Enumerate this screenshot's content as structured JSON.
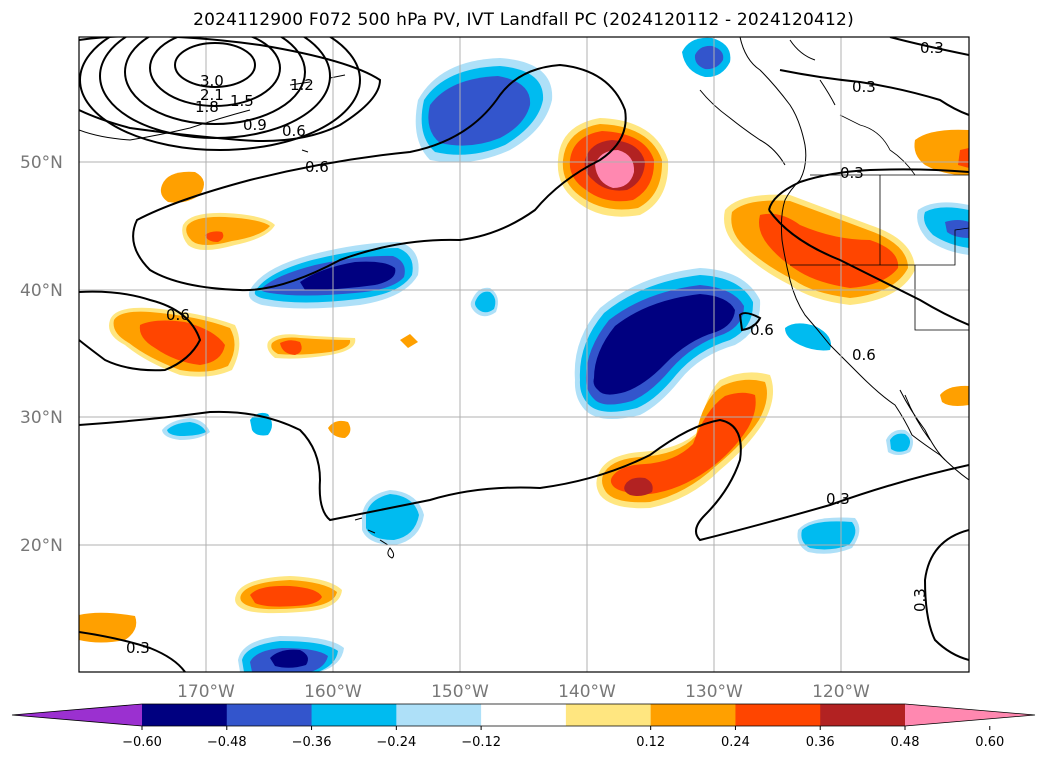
{
  "title": "2024112900 F072 500 hPa PV, IVT Landfall PC (2024120112 - 2024120412)",
  "lat_labels": [
    "50°N",
    "40°N",
    "30°N",
    "20°N"
  ],
  "lon_labels": [
    "170°W",
    "160°W",
    "150°W",
    "140°W",
    "130°W",
    "120°W"
  ],
  "contour_labels": [
    "3.0",
    "2.1",
    "1.8",
    "1.5",
    "1.2",
    "0.9",
    "0.6",
    "0.6",
    "0.6",
    "0.6",
    "0.6",
    "0.3",
    "0.3",
    "0.3",
    "0.3",
    "0.3",
    "0.3"
  ],
  "colorbar": {
    "ticks": [
      "−0.60",
      "−0.48",
      "−0.36",
      "−0.24",
      "−0.12",
      "0.12",
      "0.24",
      "0.36",
      "0.48",
      "0.60"
    ],
    "colors": [
      "#9b30d0",
      "#000080",
      "#3355cc",
      "#00bbf0",
      "#aee0f8",
      "#ffffff",
      "#ffe680",
      "#ffa000",
      "#ff4500",
      "#b22222",
      "#ff88b0"
    ]
  },
  "colors": {
    "coast": "#000000",
    "grid": "#b0b0b0",
    "contour": "#000000"
  }
}
